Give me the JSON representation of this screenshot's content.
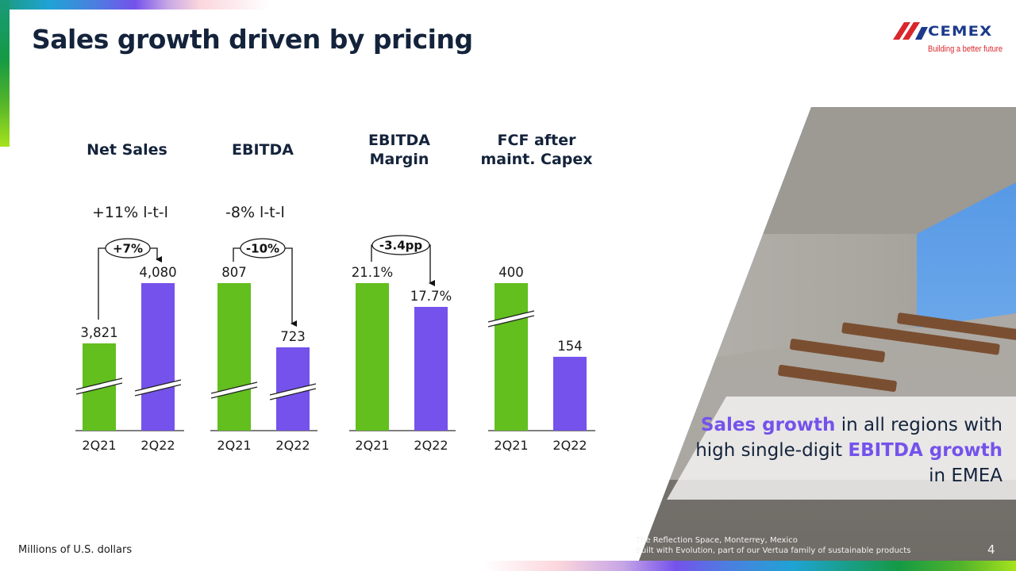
{
  "slide": {
    "title": "Sales growth driven by pricing",
    "page_number": "4",
    "footnote": "Millions of U.S. dollars"
  },
  "logo": {
    "word": "CEMEX",
    "tagline": "Building a better future",
    "colors": {
      "stripe_red": "#d9262c",
      "stripe_blue": "#1c3a8c"
    }
  },
  "colors": {
    "prior_period": "#62bf1e",
    "current_period": "#7552eb",
    "title": "#14233b",
    "highlight": "#7552eb"
  },
  "kpis": [
    {
      "heading": [
        "Net Sales"
      ],
      "lfl": "+11% l-t-l"
    },
    {
      "heading": [
        "EBITDA"
      ],
      "lfl": "-8% l-t-l"
    },
    {
      "heading": [
        "EBITDA",
        "Margin"
      ],
      "lfl": ""
    },
    {
      "heading": [
        "FCF after",
        "maint. Capex"
      ],
      "lfl": ""
    }
  ],
  "chart_data": [
    {
      "type": "bar",
      "title": "Net Sales",
      "categories": [
        "2Q21",
        "2Q22"
      ],
      "values": [
        3821,
        4080
      ],
      "labels": [
        "3,821",
        "4,080"
      ],
      "change_label": "+7%",
      "axis_break": [
        true,
        true
      ],
      "unit": "Millions of U.S. dollars"
    },
    {
      "type": "bar",
      "title": "EBITDA",
      "categories": [
        "2Q21",
        "2Q22"
      ],
      "values": [
        807,
        723
      ],
      "labels": [
        "807",
        "723"
      ],
      "change_label": "-10%",
      "axis_break": [
        true,
        true
      ],
      "unit": "Millions of U.S. dollars"
    },
    {
      "type": "bar",
      "title": "EBITDA Margin",
      "categories": [
        "2Q21",
        "2Q22"
      ],
      "values": [
        21.1,
        17.7
      ],
      "labels": [
        "21.1%",
        "17.7%"
      ],
      "change_label": "-3.4pp",
      "axis_break": [
        false,
        false
      ],
      "unit": "%"
    },
    {
      "type": "bar",
      "title": "FCF after maint. Capex",
      "categories": [
        "2Q21",
        "2Q22"
      ],
      "values": [
        400,
        154
      ],
      "labels": [
        "400",
        "154"
      ],
      "change_label": "",
      "axis_break": [
        true,
        false
      ],
      "unit": "Millions of U.S. dollars"
    }
  ],
  "caption": {
    "parts": [
      {
        "text": "Sales growth",
        "highlight": true
      },
      {
        "text": " in all regions with high single-digit ",
        "highlight": false
      },
      {
        "text": "EBITDA growth",
        "highlight": true
      },
      {
        "text": " in EMEA",
        "highlight": false
      }
    ]
  },
  "photo": {
    "credit_line1": "The Reflection Space, Monterrey, Mexico",
    "credit_line2": "Built with Evolution, part of our Vertua family of sustainable products"
  }
}
